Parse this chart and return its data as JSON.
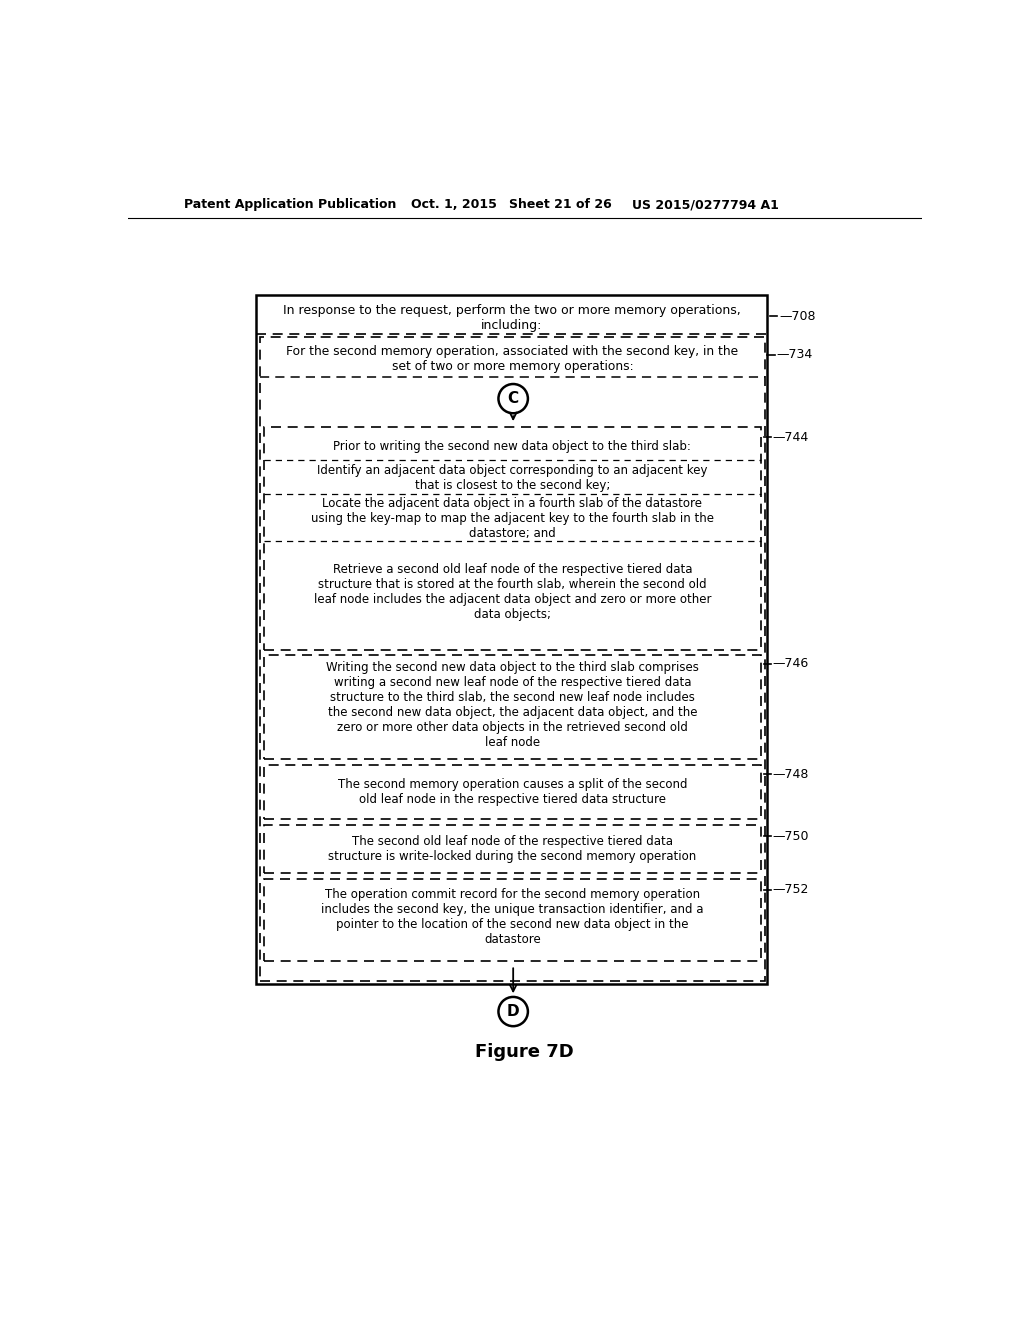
{
  "title": "Figure 7D",
  "header_left": "Patent Application Publication",
  "header_mid_date": "Oct. 1, 2015",
  "header_mid_sheet": "Sheet 21 of 26",
  "header_right": "US 2015/0277794 A1",
  "box708_text": "In response to the request, perform the two or more memory operations,\nincluding:",
  "box708_label": "708",
  "box734_text": "For the second memory operation, associated with the second key, in the\nset of two or more memory operations:",
  "box734_label": "734",
  "circle_C": "C",
  "box744_text1": "Prior to writing the second new data object to the third slab:",
  "box744_text2": "Identify an adjacent data object corresponding to an adjacent key\nthat is closest to the second key;",
  "box744_text3": "Locate the adjacent data object in a fourth slab of the datastore\nusing the key-map to map the adjacent key to the fourth slab in the\ndatastore; and",
  "box744_text4": "Retrieve a second old leaf node of the respective tiered data\nstructure that is stored at the fourth slab, wherein the second old\nleaf node includes the adjacent data object and zero or more other\ndata objects;",
  "box744_label": "744",
  "box746_text": "Writing the second new data object to the third slab comprises\nwriting a second new leaf node of the respective tiered data\nstructure to the third slab, the second new leaf node includes\nthe second new data object, the adjacent data object, and the\nzero or more other data objects in the retrieved second old\nleaf node",
  "box746_label": "746",
  "box748_text": "The second memory operation causes a split of the second\nold leaf node in the respective tiered data structure",
  "box748_label": "748",
  "box750_text": "The second old leaf node of the respective tiered data\nstructure is write-locked during the second memory operation",
  "box750_label": "750",
  "box752_text": "The operation commit record for the second memory operation\nincludes the second key, the unique transaction identifier, and a\npointer to the location of the second new data object in the\ndatastore",
  "box752_label": "752",
  "circle_D": "D",
  "bg_color": "#ffffff",
  "text_color": "#000000"
}
